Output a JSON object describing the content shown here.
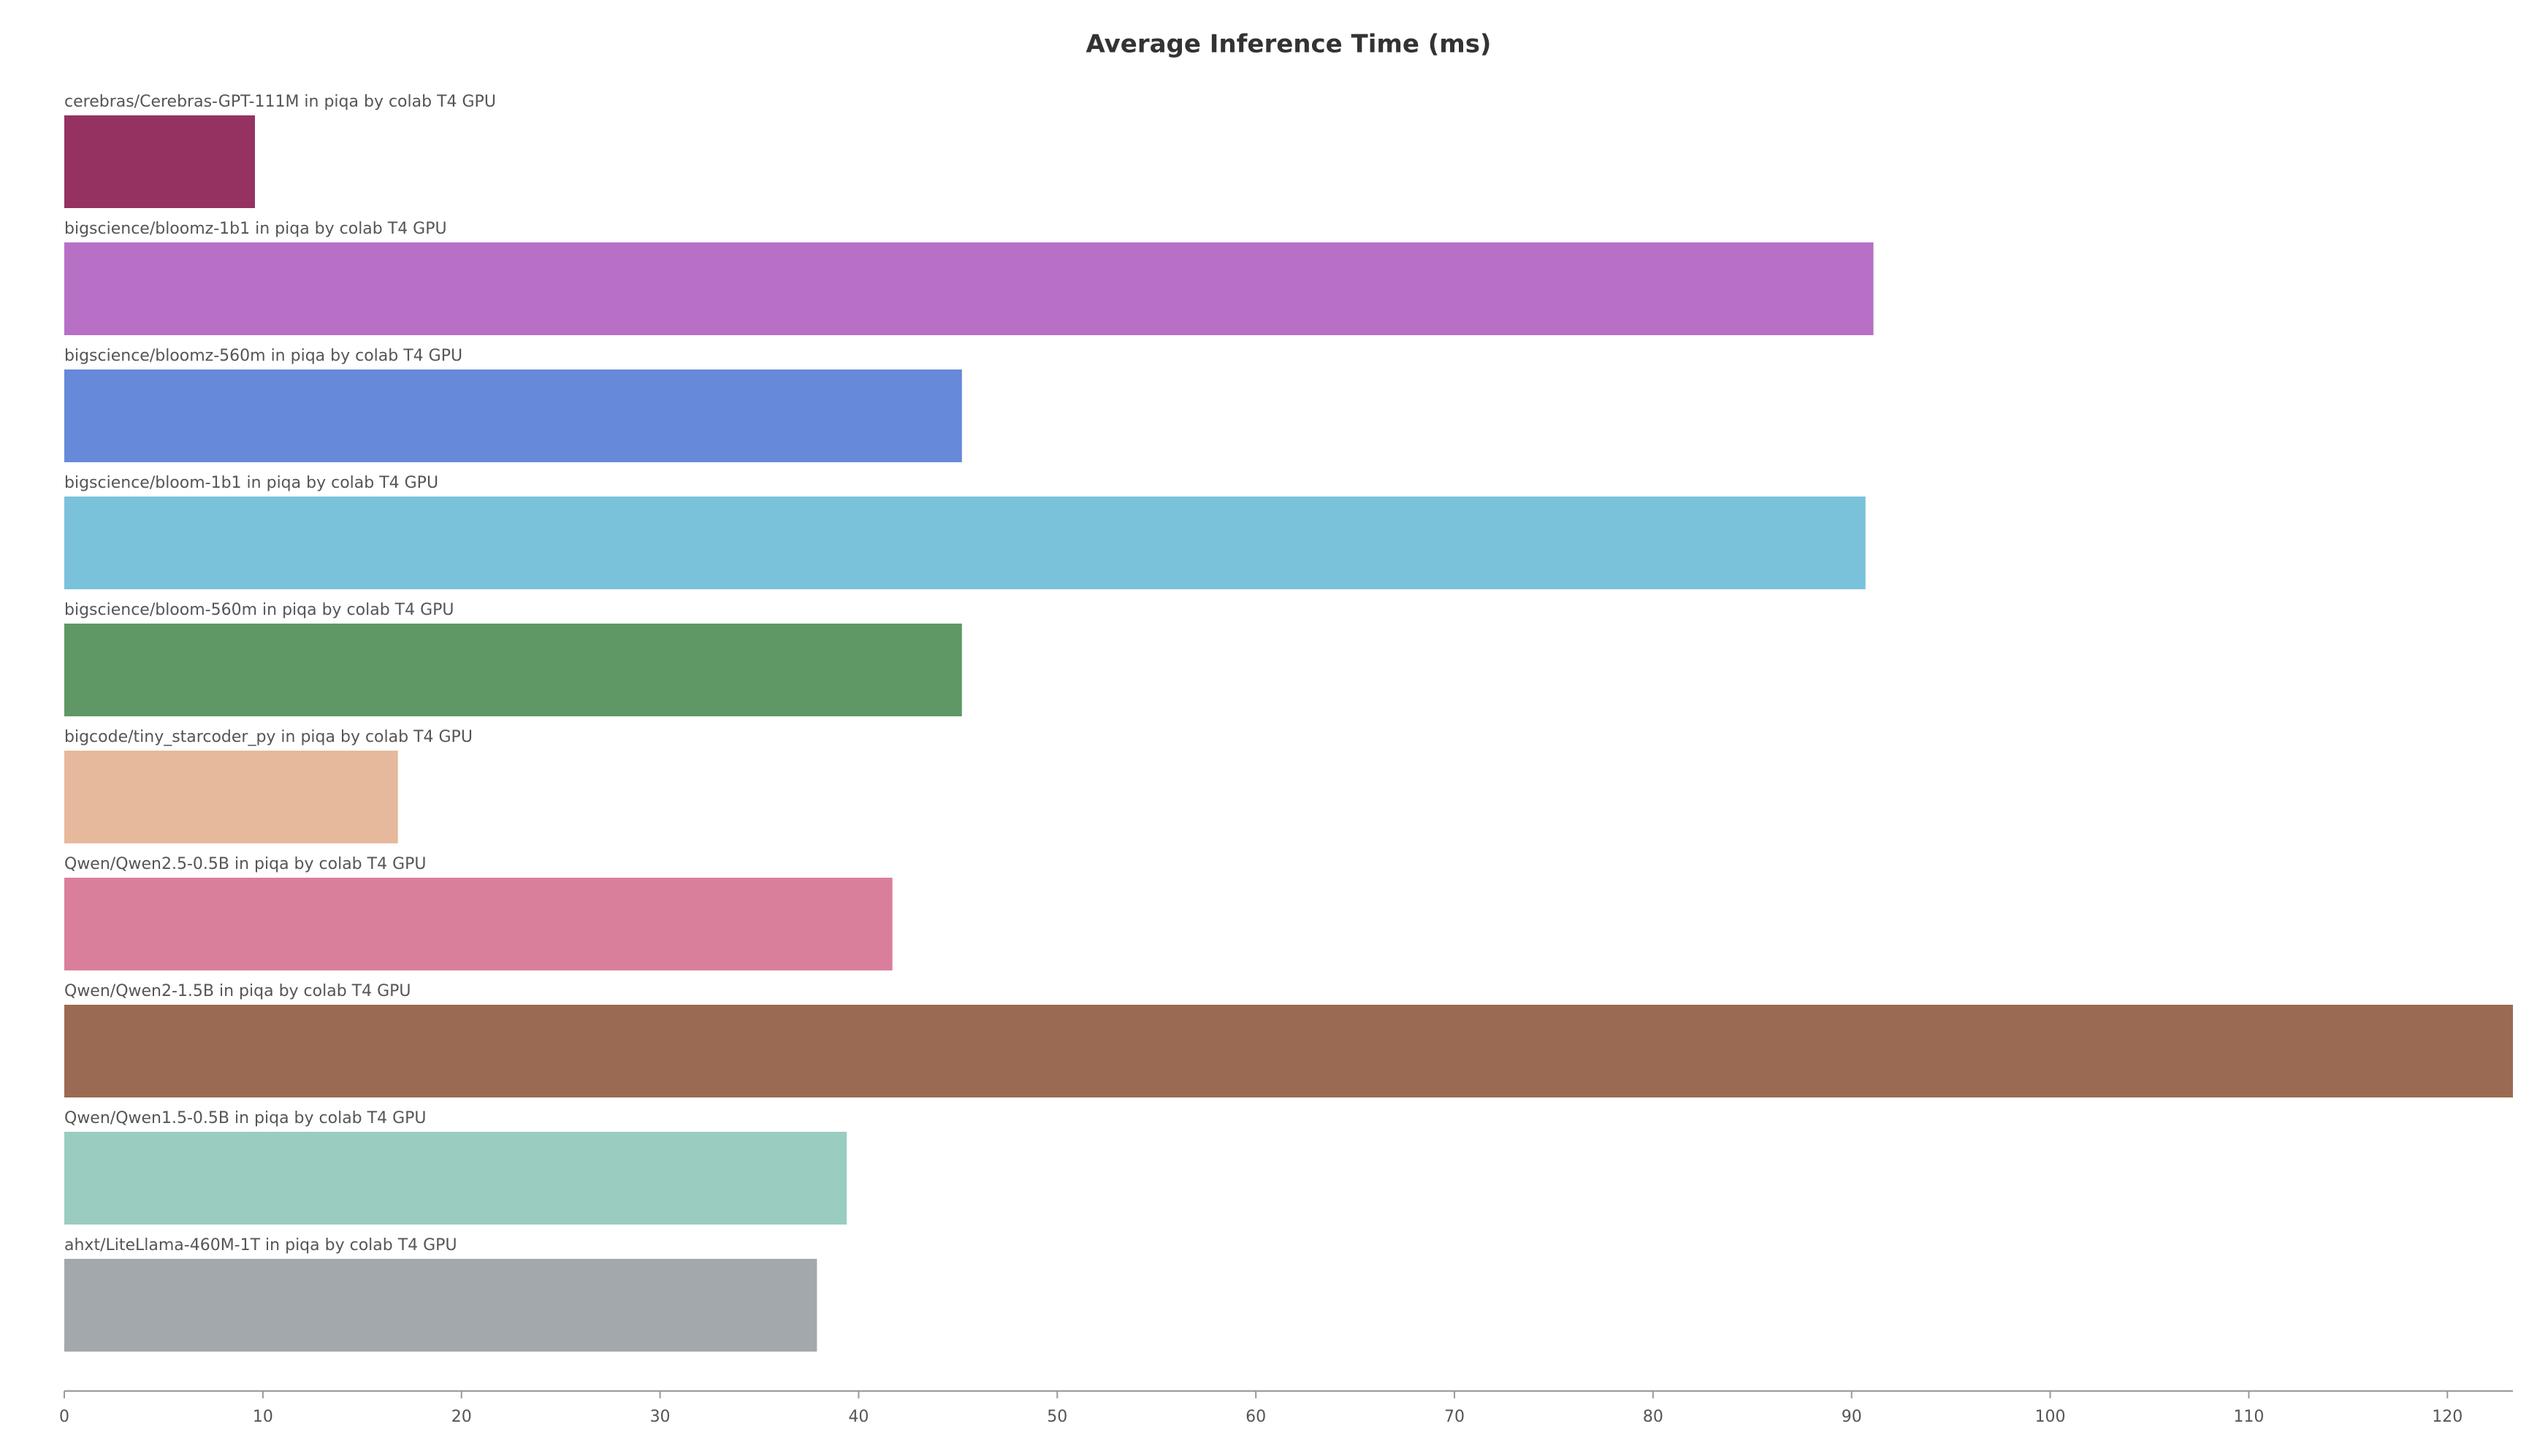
{
  "chart_data": {
    "type": "barh",
    "title": "Average Inference Time (ms)",
    "categories": [
      "cerebras/Cerebras-GPT-111M in piqa by colab T4 GPU",
      "bigscience/bloomz-1b1 in piqa by colab T4 GPU",
      "bigscience/bloomz-560m in piqa by colab T4 GPU",
      "bigscience/bloom-1b1 in piqa by colab T4 GPU",
      "bigscience/bloom-560m in piqa by colab T4 GPU",
      "bigcode/tiny_starcoder_py in piqa by colab T4 GPU",
      "Qwen/Qwen2.5-0.5B in piqa by colab T4 GPU",
      "Qwen/Qwen2-1.5B in piqa by colab T4 GPU",
      "Qwen/Qwen1.5-0.5B in piqa by colab T4 GPU",
      "ahxt/LiteLlama-460M-1T in piqa by colab T4 GPU"
    ],
    "values": [
      9.6,
      91.1,
      45.2,
      90.7,
      45.2,
      16.8,
      41.7,
      123.3,
      39.4,
      37.9
    ],
    "colors": [
      "#953262",
      "#b86fc6",
      "#6689d9",
      "#7ac2da",
      "#5f9864",
      "#e6b99c",
      "#d97f9c",
      "#9a6a53",
      "#9acdbf",
      "#a3a8ad"
    ],
    "xlim": [
      0,
      123.3
    ],
    "xticks": [
      0,
      10,
      20,
      30,
      40,
      50,
      60,
      70,
      80,
      90,
      100,
      110,
      120
    ]
  }
}
